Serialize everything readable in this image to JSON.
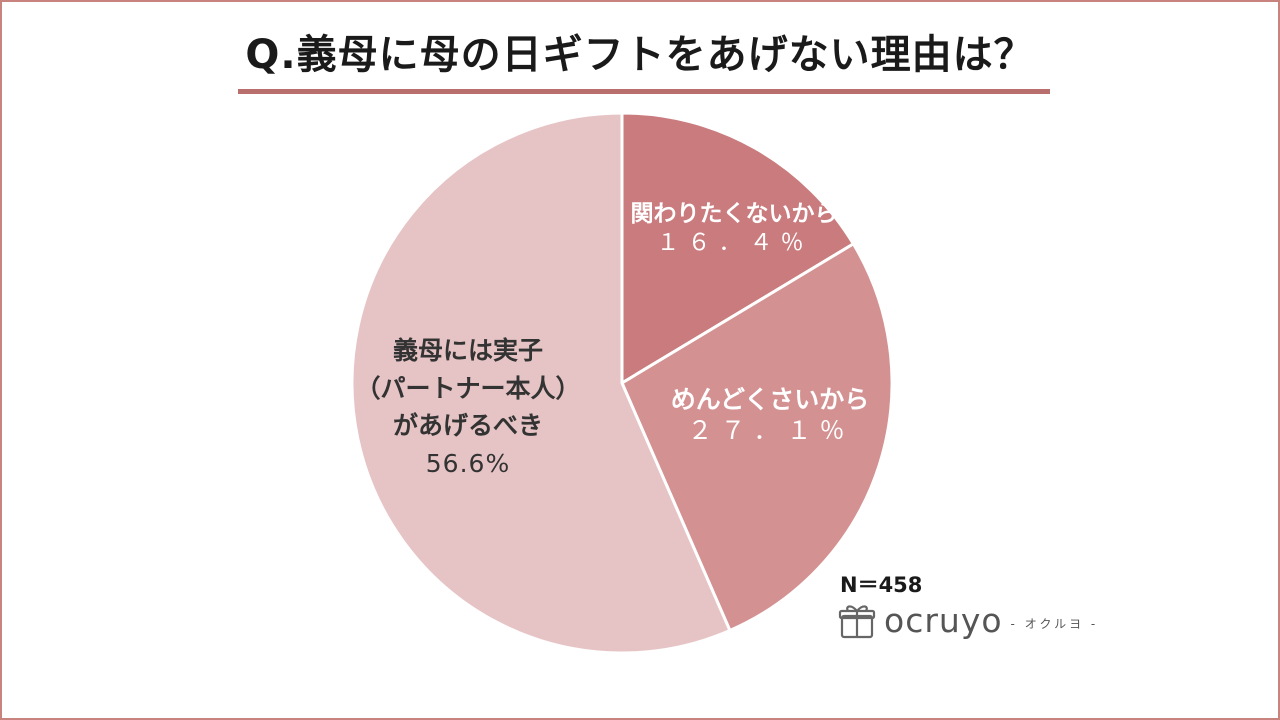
{
  "title": "Q.義母に母の日ギフトをあげない理由は？",
  "sample": "N＝458",
  "brand": {
    "name": "ocruyo",
    "sub": "- オクルヨ -",
    "icon": "gift-icon"
  },
  "colors": {
    "accent": "#b96f6d",
    "frame": "#c9837f"
  },
  "chart_data": {
    "type": "pie",
    "start": "12 o'clock, clockwise",
    "slices": [
      {
        "label": "関わりたくないから",
        "value": 16.4,
        "display": "１６．４％",
        "color": "#c97b7d"
      },
      {
        "label": "めんどくさいから",
        "value": 27.1,
        "display": "２７．１％",
        "color": "#d49192"
      },
      {
        "label_lines": [
          "義母には実子",
          "（パートナー本人）",
          "があげるべき"
        ],
        "value": 56.6,
        "display": "56.6%",
        "color": "#e6c4c5"
      }
    ]
  }
}
